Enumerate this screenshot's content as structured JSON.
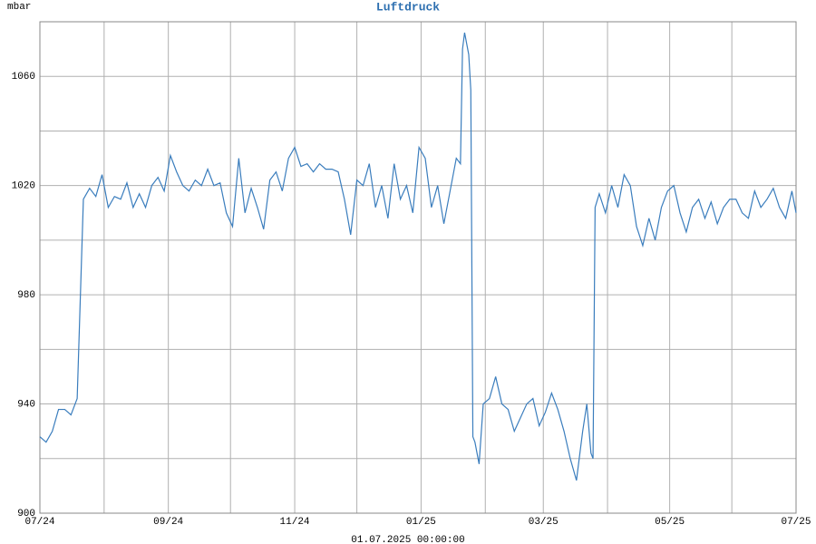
{
  "chart_data": {
    "type": "line",
    "title": "Luftdruck",
    "y_label": "mbar",
    "x_label": "01.07.2025 00:00:00",
    "xlim": [
      0,
      365
    ],
    "xticks": [
      {
        "value": 0,
        "label": "07/24"
      },
      {
        "value": 62,
        "label": "09/24"
      },
      {
        "value": 123,
        "label": "11/24"
      },
      {
        "value": 184,
        "label": "01/25"
      },
      {
        "value": 243,
        "label": "03/25"
      },
      {
        "value": 304,
        "label": "05/25"
      },
      {
        "value": 365,
        "label": "07/25"
      }
    ],
    "x_minor_grid": [
      31,
      92,
      153,
      215,
      274,
      334
    ],
    "ylim": [
      900,
      1080
    ],
    "yticks": [
      900,
      940,
      980,
      1020,
      1060
    ],
    "y_minor_grid": [
      920,
      960,
      1000,
      1040,
      1080
    ],
    "grid": true,
    "series": [
      {
        "name": "Luftdruck",
        "color": "#3a7dbd",
        "x": [
          0,
          3,
          6,
          9,
          12,
          15,
          18,
          21,
          24,
          27,
          30,
          33,
          36,
          39,
          42,
          45,
          48,
          51,
          54,
          57,
          60,
          63,
          66,
          69,
          72,
          75,
          78,
          81,
          84,
          87,
          90,
          93,
          96,
          99,
          102,
          105,
          108,
          111,
          114,
          117,
          120,
          123,
          126,
          129,
          132,
          135,
          138,
          141,
          144,
          147,
          150,
          153,
          156,
          159,
          162,
          165,
          168,
          171,
          174,
          177,
          180,
          183,
          186,
          189,
          192,
          195,
          198,
          201,
          203,
          204,
          205,
          207,
          208,
          209,
          210,
          212,
          214,
          217,
          220,
          223,
          226,
          229,
          232,
          235,
          238,
          241,
          244,
          247,
          250,
          253,
          256,
          259,
          262,
          264,
          266,
          267,
          268,
          270,
          273,
          276,
          279,
          282,
          285,
          288,
          291,
          294,
          297,
          300,
          303,
          306,
          309,
          312,
          315,
          318,
          321,
          324,
          327,
          330,
          333,
          336,
          339,
          342,
          345,
          348,
          351,
          354,
          357,
          360,
          363,
          365
        ],
        "values": [
          928,
          926,
          930,
          938,
          938,
          936,
          942,
          1015,
          1019,
          1016,
          1024,
          1012,
          1016,
          1015,
          1021,
          1012,
          1017,
          1012,
          1020,
          1023,
          1018,
          1031,
          1025,
          1020,
          1018,
          1022,
          1020,
          1026,
          1020,
          1021,
          1010,
          1005,
          1030,
          1010,
          1019,
          1012,
          1004,
          1022,
          1025,
          1018,
          1030,
          1034,
          1027,
          1028,
          1025,
          1028,
          1026,
          1026,
          1025,
          1015,
          1002,
          1022,
          1020,
          1028,
          1012,
          1020,
          1008,
          1028,
          1015,
          1020,
          1010,
          1034,
          1030,
          1012,
          1020,
          1006,
          1018,
          1030,
          1028,
          1070,
          1076,
          1068,
          1055,
          928,
          926,
          918,
          940,
          942,
          950,
          940,
          938,
          930,
          935,
          940,
          942,
          932,
          937,
          944,
          938,
          930,
          920,
          912,
          930,
          940,
          922,
          920,
          1012,
          1017,
          1010,
          1020,
          1012,
          1024,
          1020,
          1005,
          998,
          1008,
          1000,
          1012,
          1018,
          1020,
          1010,
          1003,
          1012,
          1015,
          1008,
          1014,
          1006,
          1012,
          1015,
          1015,
          1010,
          1008,
          1018,
          1012,
          1015,
          1019,
          1012,
          1008,
          1018,
          1010
        ]
      }
    ]
  }
}
